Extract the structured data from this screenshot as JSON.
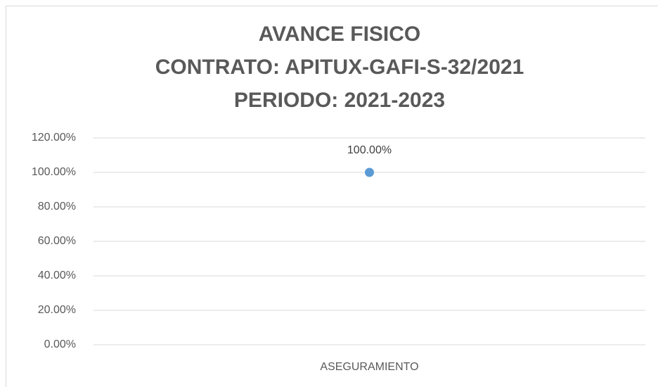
{
  "chart_data": {
    "type": "line",
    "title": [
      "AVANCE FISICO",
      "CONTRATO: APITUX-GAFI-S-32/2021",
      "PERIODO: 2021-2023"
    ],
    "categories": [
      "ASEGURAMIENTO"
    ],
    "values": [
      100
    ],
    "value_labels": [
      "100.00%"
    ],
    "color": "#5b9bd5",
    "ylim": [
      0,
      120
    ],
    "yticks": [
      {
        "value": 0,
        "label": "0.00%"
      },
      {
        "value": 20,
        "label": "20.00%"
      },
      {
        "value": 40,
        "label": "40.00%"
      },
      {
        "value": 60,
        "label": "60.00%"
      },
      {
        "value": 80,
        "label": "80.00%"
      },
      {
        "value": 100,
        "label": "100.00%"
      },
      {
        "value": 120,
        "label": "120.00%"
      }
    ],
    "grid": true
  }
}
